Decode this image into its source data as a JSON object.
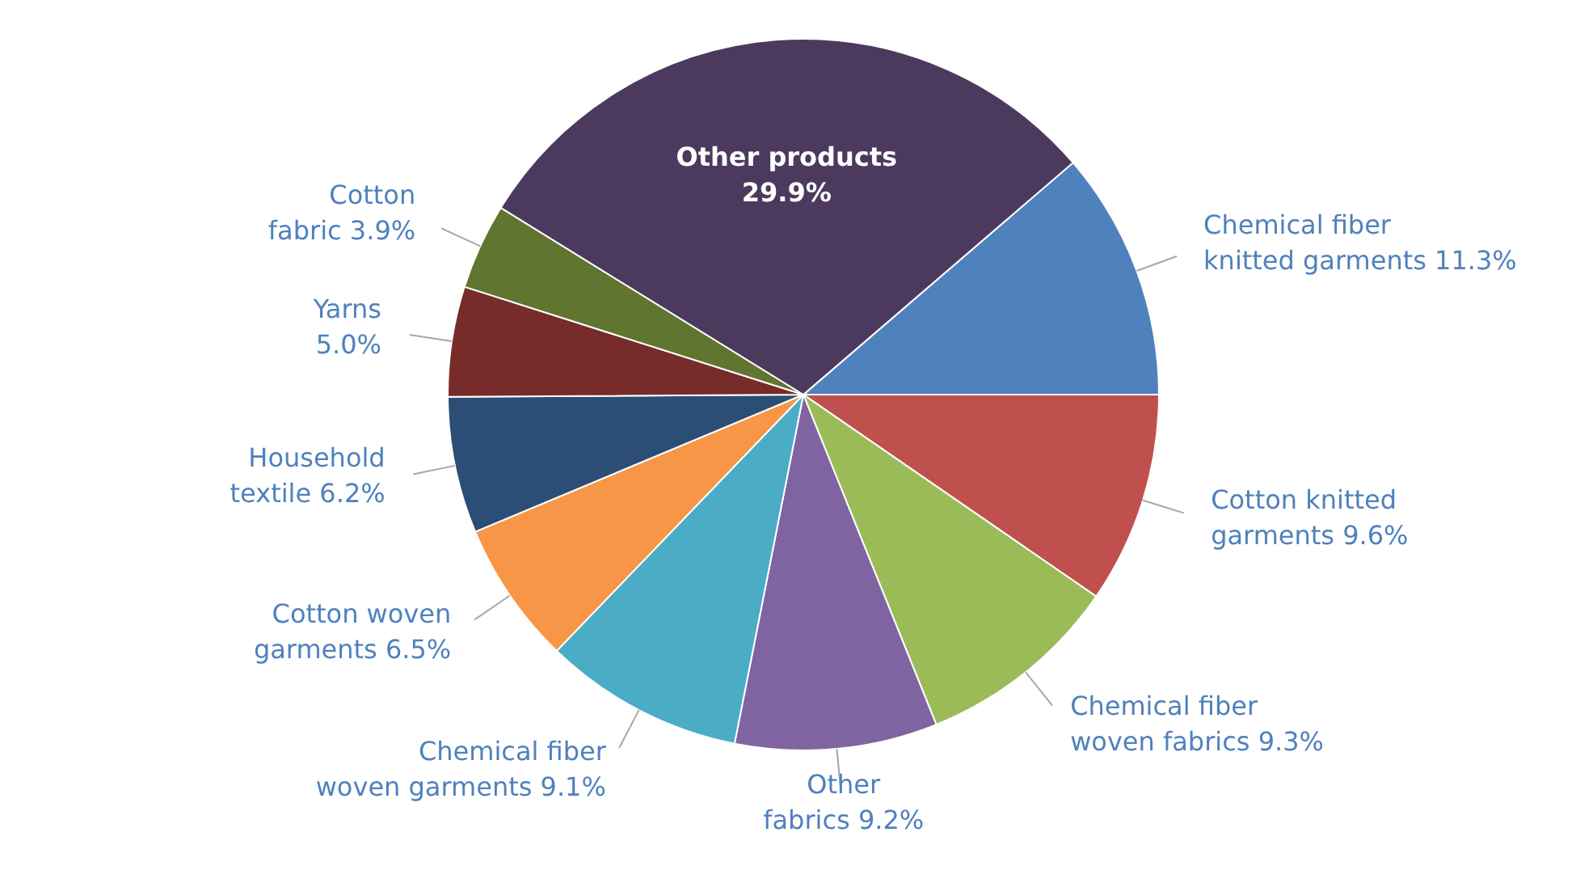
{
  "chart_data": {
    "type": "pie",
    "categories": [
      "Chemical fiber knitted garments",
      "Cotton knitted garments",
      "Chemical fiber woven fabrics",
      "Other fabrics",
      "Chemical fiber woven garments",
      "Cotton woven garments",
      "Household textile",
      "Yarns",
      "Cotton fabric",
      "Other products"
    ],
    "values": [
      11.3,
      9.6,
      9.3,
      9.2,
      9.1,
      6.5,
      6.2,
      5.0,
      3.9,
      29.9
    ],
    "value_labels": [
      "11.3%",
      "9.6%",
      "9.3%",
      "9.2%",
      "9.1%",
      "6.5%",
      "6.2%",
      "5.0%",
      "3.9%",
      "29.9%"
    ],
    "colors": [
      "#4f81bd",
      "#c0504d",
      "#9bbb59",
      "#8064a2",
      "#4bacc6",
      "#f79646",
      "#2c4d75",
      "#772c2a",
      "#5f7530",
      "#4b3a5e"
    ]
  }
}
